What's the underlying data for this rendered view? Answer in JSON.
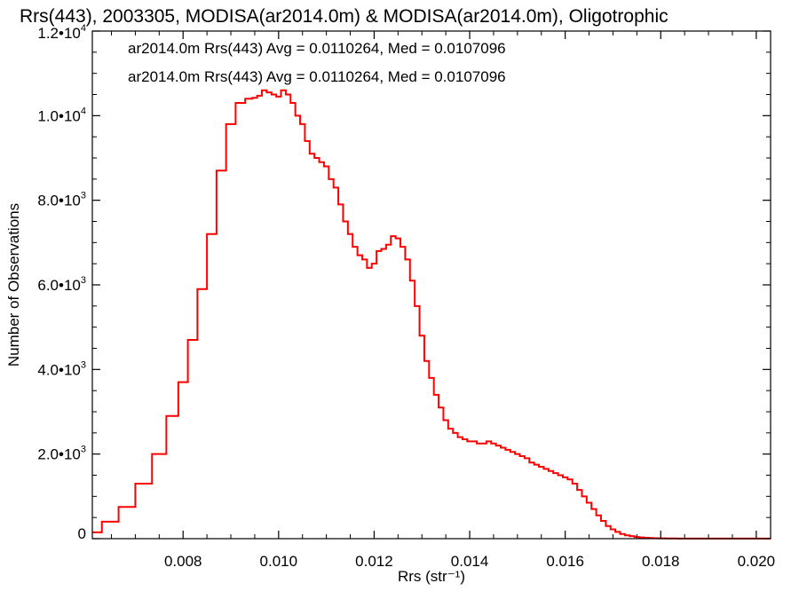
{
  "chart_data": {
    "type": "line",
    "title": "Rrs(443), 2003305, MODISA(ar2014.0m) & MODISA(ar2014.0m), Oligotrophic",
    "xlabel": "Rrs (str⁻¹)",
    "ylabel": "Number of Observations",
    "xlim": [
      0.0061,
      0.0203
    ],
    "ylim": [
      0,
      12000
    ],
    "x_ticks": [
      0.008,
      0.01,
      0.012,
      0.014,
      0.016,
      0.018,
      0.02
    ],
    "x_tick_labels": [
      "0.008",
      "0.010",
      "0.012",
      "0.014",
      "0.016",
      "0.018",
      "0.020"
    ],
    "y_ticks": [
      {
        "value": 0,
        "mantissa": "0",
        "exp": ""
      },
      {
        "value": 2000,
        "mantissa": "2.0•10",
        "exp": "3"
      },
      {
        "value": 4000,
        "mantissa": "4.0•10",
        "exp": "3"
      },
      {
        "value": 6000,
        "mantissa": "6.0•10",
        "exp": "3"
      },
      {
        "value": 8000,
        "mantissa": "8.0•10",
        "exp": "3"
      },
      {
        "value": 10000,
        "mantissa": "1.0•10",
        "exp": "4"
      },
      {
        "value": 12000,
        "mantissa": "1.2•10",
        "exp": "4"
      }
    ],
    "annotations": [
      {
        "text": "ar2014.0m Rrs(443) Avg = 0.0110264, Med = 0.0107096",
        "color": "#000000"
      },
      {
        "text": "ar2014.0m Rrs(443) Avg = 0.0110264, Med = 0.0107096",
        "color": "#ff0000"
      }
    ],
    "series": [
      {
        "color": "#ff0000",
        "x": [
          0.0061,
          0.0065,
          0.0068,
          0.0072,
          0.0075,
          0.0078,
          0.008,
          0.0082,
          0.0084,
          0.0086,
          0.0088,
          0.009,
          0.0092,
          0.0094,
          0.0095,
          0.0096,
          0.0097,
          0.0098,
          0.0099,
          0.01,
          0.0101,
          0.0102,
          0.0103,
          0.0104,
          0.0105,
          0.0106,
          0.0107,
          0.0108,
          0.0109,
          0.011,
          0.0111,
          0.0112,
          0.0113,
          0.0114,
          0.0115,
          0.0116,
          0.0117,
          0.0118,
          0.0119,
          0.012,
          0.0121,
          0.0122,
          0.0123,
          0.0124,
          0.0125,
          0.0126,
          0.0127,
          0.0128,
          0.0129,
          0.013,
          0.0131,
          0.0132,
          0.0133,
          0.0134,
          0.0135,
          0.0136,
          0.0137,
          0.0138,
          0.0139,
          0.014,
          0.0141,
          0.0142,
          0.0143,
          0.0144,
          0.0145,
          0.0146,
          0.0147,
          0.0148,
          0.0149,
          0.015,
          0.0151,
          0.0152,
          0.0153,
          0.0154,
          0.0155,
          0.0156,
          0.0157,
          0.0158,
          0.0159,
          0.016,
          0.0161,
          0.0162,
          0.0163,
          0.0164,
          0.0165,
          0.0166,
          0.0167,
          0.0168,
          0.0169,
          0.017,
          0.0171,
          0.0172,
          0.0173,
          0.0174,
          0.0175,
          0.0176,
          0.0177,
          0.0178,
          0.0179,
          0.018,
          0.0182,
          0.0185,
          0.019,
          0.0195,
          0.02,
          0.0203
        ],
        "values": [
          150,
          400,
          750,
          1300,
          2000,
          2900,
          3700,
          4700,
          5900,
          7200,
          8700,
          9800,
          10300,
          10400,
          10420,
          10470,
          10600,
          10550,
          10500,
          10450,
          10600,
          10500,
          10300,
          10000,
          9800,
          9400,
          9100,
          9000,
          8900,
          8800,
          8500,
          8300,
          7900,
          7500,
          7200,
          6900,
          6700,
          6600,
          6400,
          6500,
          6800,
          6850,
          6950,
          7150,
          7100,
          6900,
          6600,
          6100,
          5500,
          4800,
          4200,
          3800,
          3400,
          3100,
          2800,
          2600,
          2500,
          2400,
          2350,
          2300,
          2300,
          2250,
          2250,
          2300,
          2250,
          2200,
          2150,
          2100,
          2050,
          2000,
          1950,
          1900,
          1800,
          1750,
          1700,
          1650,
          1600,
          1550,
          1500,
          1450,
          1400,
          1300,
          1150,
          1000,
          850,
          700,
          550,
          420,
          300,
          220,
          160,
          110,
          80,
          60,
          40,
          30,
          20,
          15,
          10,
          8,
          5,
          3,
          2,
          2,
          2,
          2
        ]
      }
    ]
  }
}
